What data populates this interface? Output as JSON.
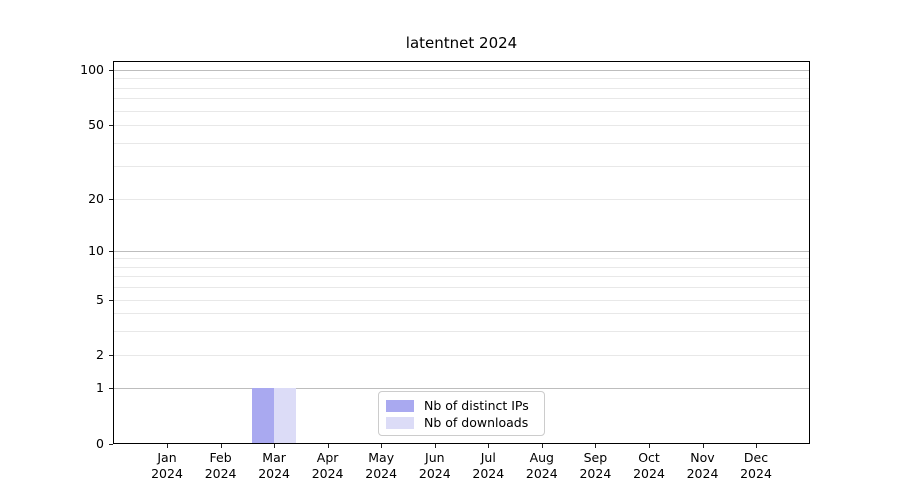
{
  "chart_data": {
    "type": "bar",
    "title": "latentnet 2024",
    "xlabel": "",
    "ylabel": "",
    "grid": "horizontal",
    "categories": [
      {
        "month": "Jan",
        "year": "2024"
      },
      {
        "month": "Feb",
        "year": "2024"
      },
      {
        "month": "Mar",
        "year": "2024"
      },
      {
        "month": "Apr",
        "year": "2024"
      },
      {
        "month": "May",
        "year": "2024"
      },
      {
        "month": "Jun",
        "year": "2024"
      },
      {
        "month": "Jul",
        "year": "2024"
      },
      {
        "month": "Aug",
        "year": "2024"
      },
      {
        "month": "Sep",
        "year": "2024"
      },
      {
        "month": "Oct",
        "year": "2024"
      },
      {
        "month": "Nov",
        "year": "2024"
      },
      {
        "month": "Dec",
        "year": "2024"
      }
    ],
    "series": [
      {
        "name": "Nb of distinct IPs",
        "color": "#a9a9f0",
        "values": [
          0,
          0,
          1,
          0,
          0,
          0,
          0,
          0,
          0,
          0,
          0,
          0
        ]
      },
      {
        "name": "Nb of downloads",
        "color": "#dcdcf7",
        "values": [
          0,
          0,
          1,
          0,
          0,
          0,
          0,
          0,
          0,
          0,
          0,
          0
        ]
      }
    ],
    "yaxis": {
      "scale": "symlog",
      "tick_values": [
        0,
        1,
        2,
        5,
        10,
        20,
        50,
        100
      ],
      "tick_labels": [
        "0",
        "1",
        "2",
        "5",
        "10",
        "20",
        "50",
        "100"
      ],
      "minor_gridline_values": [
        3,
        4,
        6,
        7,
        8,
        9,
        30,
        40,
        60,
        70,
        80,
        90
      ],
      "ylim": [
        0,
        115
      ]
    },
    "legend": {
      "position": "inside-bottom-center"
    },
    "colors": {
      "grid_major": "#bdbdbd",
      "grid_minor": "#e8e8e8",
      "spine": "#000000",
      "text": "#000000",
      "background": "#ffffff"
    }
  }
}
